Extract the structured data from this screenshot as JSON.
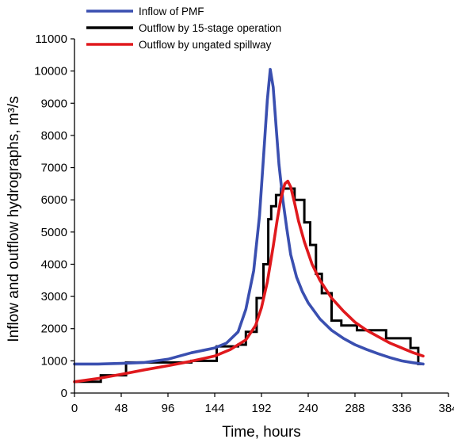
{
  "chart_data": {
    "type": "line",
    "xlabel": "Time, hours",
    "ylabel": "Inflow and outflow hydrographs, m³/s",
    "xlim": [
      0,
      384
    ],
    "ylim": [
      0,
      11000
    ],
    "xticks": [
      0,
      48,
      96,
      144,
      192,
      240,
      288,
      336,
      384
    ],
    "yticks": [
      0,
      1000,
      2000,
      3000,
      4000,
      5000,
      6000,
      7000,
      8000,
      9000,
      10000,
      11000
    ],
    "grid": false,
    "legend_position": "top-left (above plot)",
    "series": [
      {
        "name": "Inflow of PMF",
        "color": "#3a4fb0",
        "step": false,
        "x": [
          0,
          24,
          48,
          72,
          96,
          120,
          144,
          156,
          168,
          176,
          184,
          190,
          194,
          198,
          201,
          204,
          207,
          210,
          214,
          218,
          222,
          228,
          234,
          240,
          252,
          264,
          276,
          288,
          300,
          312,
          324,
          336,
          348,
          358
        ],
        "y": [
          900,
          900,
          920,
          950,
          1050,
          1250,
          1400,
          1550,
          1900,
          2600,
          3800,
          5500,
          7300,
          9100,
          10050,
          9500,
          8300,
          7100,
          6000,
          5100,
          4300,
          3600,
          3150,
          2800,
          2300,
          1950,
          1700,
          1500,
          1350,
          1220,
          1100,
          1000,
          940,
          900
        ]
      },
      {
        "name": "Outflow by 15-stage operation",
        "color": "#000000",
        "step": true,
        "x": [
          0,
          27,
          27,
          53,
          53,
          120,
          120,
          146,
          146,
          168,
          168,
          176,
          176,
          187,
          187,
          194,
          194,
          199,
          199,
          202,
          202,
          207,
          207,
          212,
          212,
          226,
          226,
          236,
          236,
          242,
          242,
          248,
          248,
          254,
          254,
          264,
          264,
          274,
          274,
          290,
          290,
          320,
          320,
          345,
          345,
          353,
          353,
          358
        ],
        "y": [
          350,
          350,
          550,
          550,
          950,
          950,
          1000,
          1000,
          1450,
          1450,
          1500,
          1500,
          1900,
          1900,
          2950,
          2950,
          4000,
          4000,
          5400,
          5400,
          5800,
          5800,
          6150,
          6150,
          6350,
          6350,
          6000,
          6000,
          5300,
          5300,
          4600,
          4600,
          3700,
          3700,
          3100,
          3100,
          2250,
          2250,
          2100,
          2100,
          1950,
          1950,
          1700,
          1700,
          1400,
          1400,
          900,
          900
        ]
      },
      {
        "name": "Outflow by ungated spillway",
        "color": "#e0191d",
        "step": false,
        "x": [
          0,
          24,
          48,
          72,
          96,
          120,
          144,
          160,
          176,
          186,
          192,
          198,
          204,
          208,
          212,
          216,
          219,
          222,
          226,
          230,
          236,
          244,
          252,
          264,
          276,
          288,
          300,
          312,
          324,
          336,
          348,
          358
        ],
        "y": [
          350,
          450,
          580,
          720,
          850,
          990,
          1150,
          1350,
          1650,
          2100,
          2650,
          3450,
          4550,
          5350,
          6050,
          6500,
          6580,
          6400,
          5900,
          5350,
          4700,
          4000,
          3500,
          2950,
          2550,
          2200,
          1950,
          1750,
          1550,
          1400,
          1250,
          1150
        ]
      }
    ]
  }
}
